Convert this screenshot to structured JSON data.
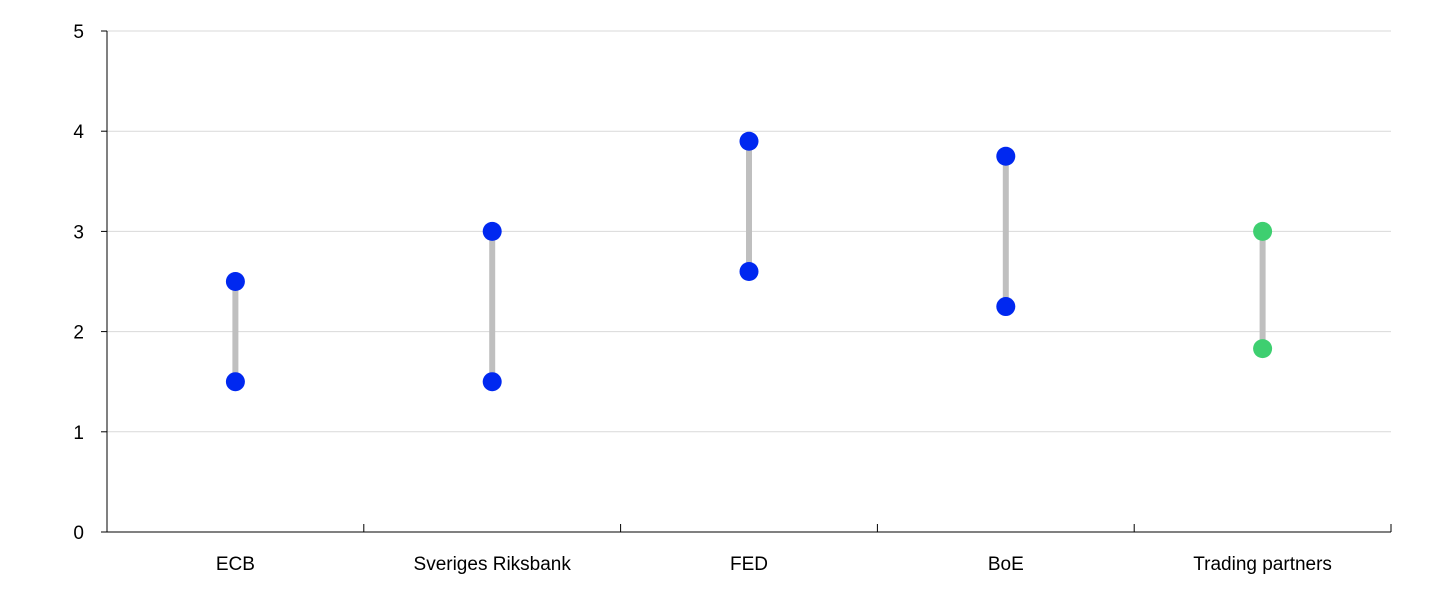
{
  "chart_data": {
    "type": "range",
    "title": "",
    "xlabel": "",
    "ylabel": "",
    "ylim": [
      0,
      5
    ],
    "yticks": [
      0,
      1,
      2,
      3,
      4,
      5
    ],
    "grid": true,
    "categories": [
      "ECB",
      "Sveriges Riksbank",
      "FED",
      "BoE",
      "Trading partners"
    ],
    "series": [
      {
        "values": [
          2.5,
          3.0,
          3.9,
          3.75,
          3.0
        ]
      },
      {
        "values": [
          1.5,
          1.5,
          2.6,
          2.25,
          1.83
        ]
      }
    ],
    "point_colors": [
      "#0028f0",
      "#0028f0",
      "#0028f0",
      "#0028f0",
      "#3ecf70"
    ],
    "range_line_color": "#bfbfbf",
    "gridline_color": "#d9d9d9",
    "axis_color": "#000000"
  }
}
